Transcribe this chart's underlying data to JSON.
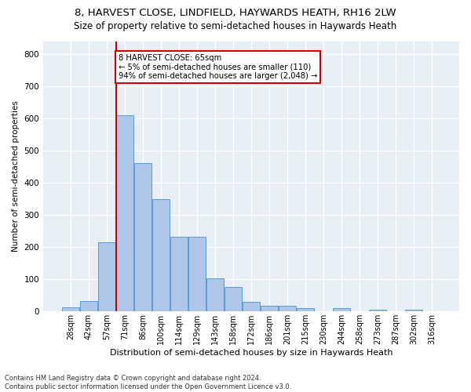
{
  "title_line1": "8, HARVEST CLOSE, LINDFIELD, HAYWARDS HEATH, RH16 2LW",
  "title_line2": "Size of property relative to semi-detached houses in Haywards Heath",
  "xlabel": "Distribution of semi-detached houses by size in Haywards Heath",
  "ylabel": "Number of semi-detached properties",
  "footer": "Contains HM Land Registry data © Crown copyright and database right 2024.\nContains public sector information licensed under the Open Government Licence v3.0.",
  "categories": [
    "28sqm",
    "42sqm",
    "57sqm",
    "71sqm",
    "86sqm",
    "100sqm",
    "114sqm",
    "129sqm",
    "143sqm",
    "158sqm",
    "172sqm",
    "186sqm",
    "201sqm",
    "215sqm",
    "230sqm",
    "244sqm",
    "258sqm",
    "273sqm",
    "287sqm",
    "302sqm",
    "316sqm"
  ],
  "values": [
    12,
    32,
    215,
    610,
    460,
    350,
    232,
    232,
    103,
    77,
    30,
    18,
    18,
    10,
    0,
    10,
    0,
    5,
    0,
    5,
    0
  ],
  "bar_color": "#aec6e8",
  "bar_edge_color": "#5a9bd5",
  "annotation_line_color": "#cc0000",
  "annotation_text_line1": "8 HARVEST CLOSE: 65sqm",
  "annotation_text_line2": "← 5% of semi-detached houses are smaller (110)",
  "annotation_text_line3": "94% of semi-detached houses are larger (2,048) →",
  "annotation_box_color": "#cc0000",
  "ylim": [
    0,
    840
  ],
  "yticks": [
    0,
    100,
    200,
    300,
    400,
    500,
    600,
    700,
    800
  ],
  "background_color": "#e8eef6",
  "grid_color": "#ffffff",
  "title_fontsize": 9.5,
  "subtitle_fontsize": 8.5,
  "bar_index_for_line": 2.5
}
